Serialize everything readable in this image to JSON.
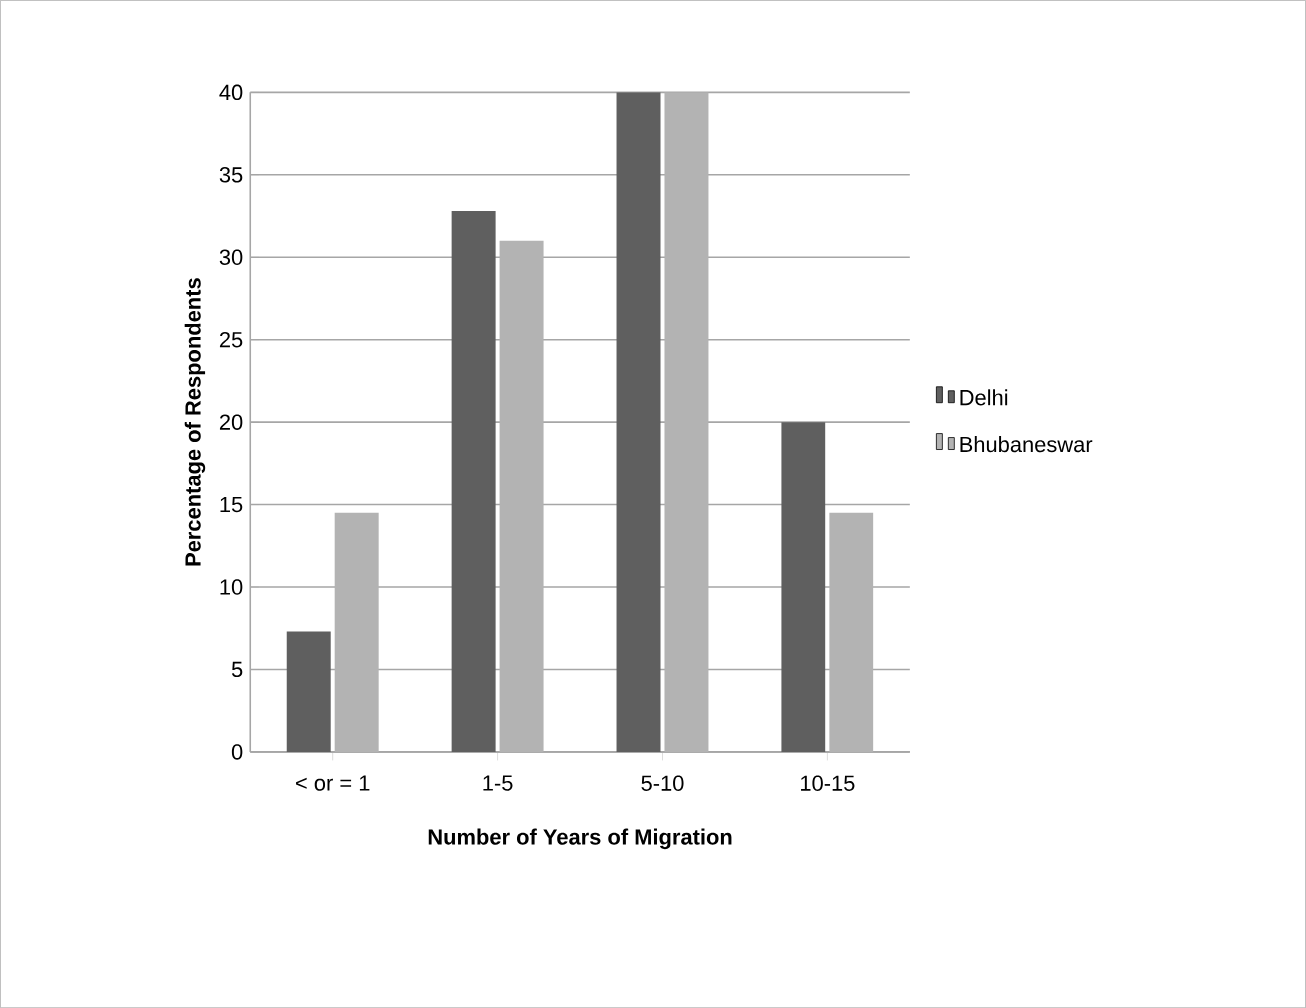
{
  "chart_data": {
    "type": "bar",
    "xlabel": "Number of Years of Migration",
    "ylabel": "Percentage of Respondents",
    "categories": [
      "< or = 1",
      "1-5",
      "5-10",
      "10-15"
    ],
    "series": [
      {
        "name": "Delhi",
        "color": "#5f5f5f",
        "values": [
          7.3,
          32.8,
          40,
          20
        ]
      },
      {
        "name": "Bhubaneswar",
        "color": "#b3b3b3",
        "values": [
          14.5,
          31,
          40,
          14.5
        ]
      }
    ],
    "ylim": [
      0,
      40
    ],
    "yticks": [
      0,
      5,
      10,
      15,
      20,
      25,
      30,
      35,
      40
    ],
    "grid": "y",
    "legend": "right"
  }
}
